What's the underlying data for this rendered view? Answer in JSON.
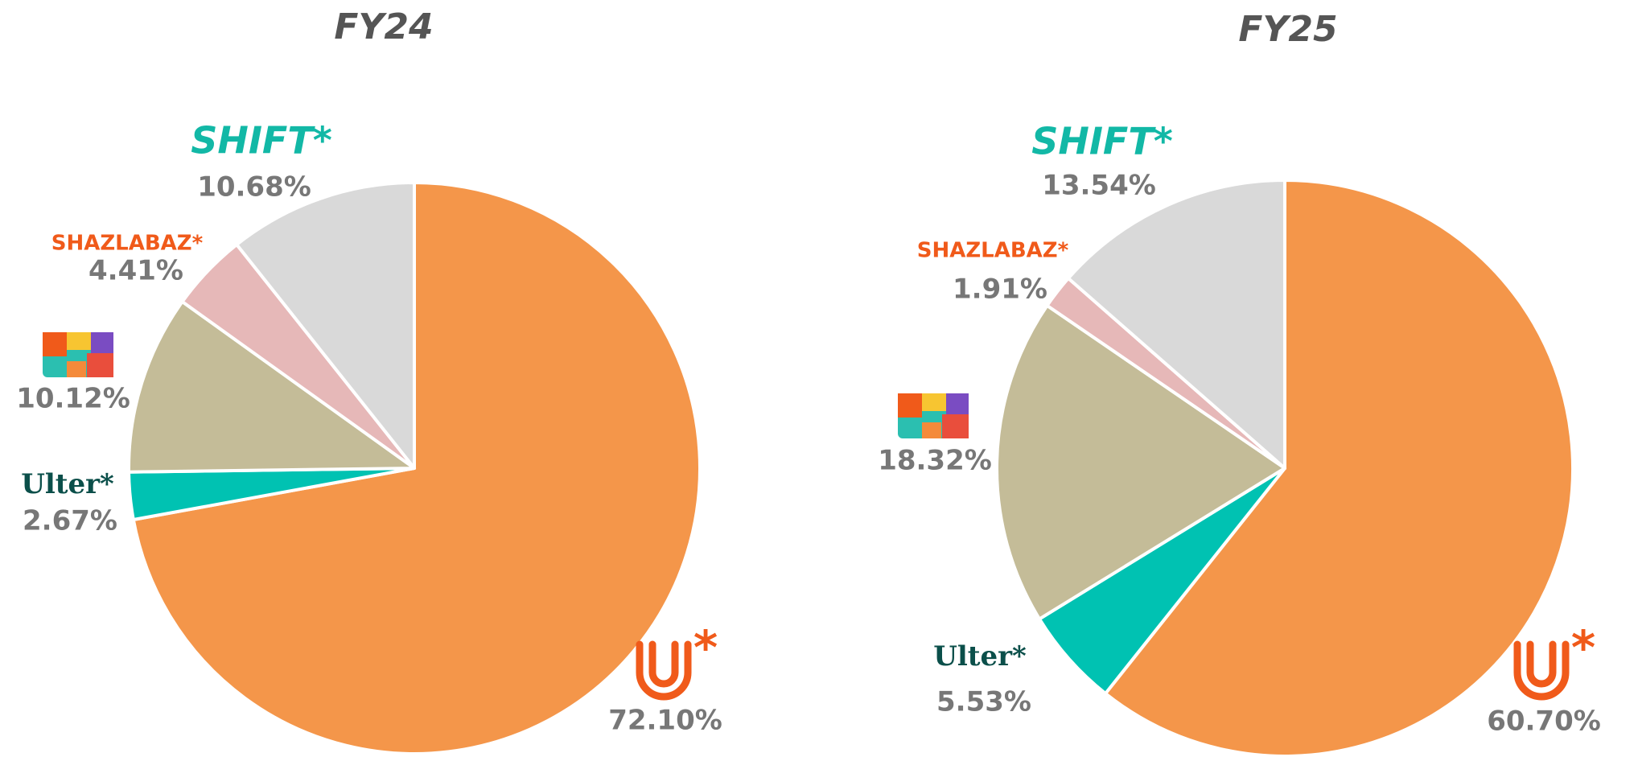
{
  "chart_data": [
    {
      "type": "pie",
      "title": "FY24",
      "categories": [
        null,
        "Ulter*",
        null,
        "SHAZLABAZ*",
        "SHIFT*"
      ],
      "values": [
        72.1,
        2.67,
        10.12,
        4.41,
        10.68
      ],
      "value_labels": [
        "72.10%",
        "2.67%",
        "10.12%",
        "4.41%",
        "10.68%"
      ],
      "colors": [
        "#f4964a",
        "#00c2b2",
        "#c4bc98",
        "#e6b8b8",
        "#d9d9d9"
      ]
    },
    {
      "type": "pie",
      "title": "FY25",
      "categories": [
        null,
        "Ulter*",
        null,
        "SHAZLABAZ*",
        "SHIFT*"
      ],
      "values": [
        60.7,
        5.53,
        18.32,
        1.91,
        13.54
      ],
      "value_labels": [
        "60.70%",
        "5.53%",
        "18.32%",
        "1.91%",
        "13.54%"
      ],
      "colors": [
        "#f4964a",
        "#00c2b2",
        "#c4bc98",
        "#e6b8b8",
        "#d9d9d9"
      ]
    }
  ]
}
